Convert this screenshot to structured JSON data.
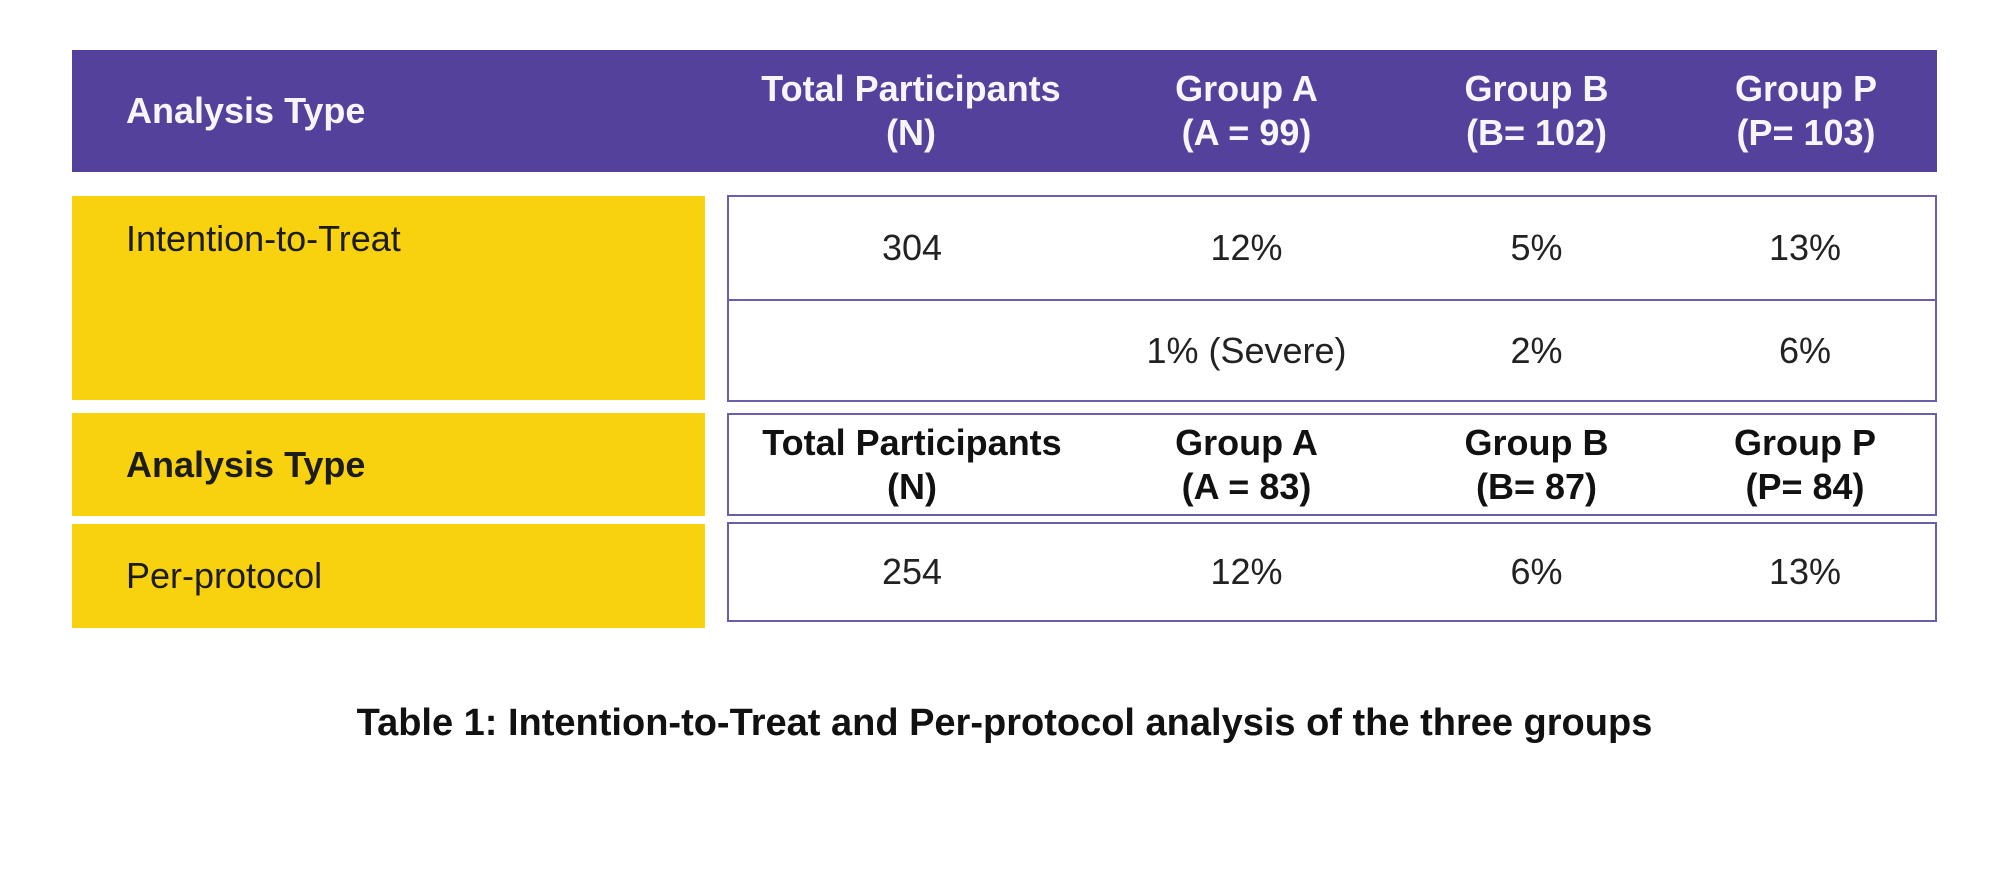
{
  "colors": {
    "header_purple": "#54419B",
    "row_yellow": "#F8D20E",
    "box_border_purple": "#6A5FA8",
    "header_text": "#F7F5FA",
    "body_text": "#222222"
  },
  "primary_header": {
    "analysis_type_label": "Analysis Type",
    "columns": [
      {
        "line1": "Total Participants",
        "line2": "(N)"
      },
      {
        "line1": "Group A",
        "line2": "(A = 99)"
      },
      {
        "line1": "Group B",
        "line2": "(B= 102)"
      },
      {
        "line1": "Group P",
        "line2": "(P= 103)"
      }
    ]
  },
  "intention_to_treat": {
    "row_label": "Intention-to-Treat",
    "row1": {
      "total": "304",
      "group_a": "12%",
      "group_b": "5%",
      "group_p": "13%"
    },
    "row2": {
      "total": "",
      "group_a": "1% (Severe)",
      "group_b": "2%",
      "group_p": "6%"
    }
  },
  "per_protocol": {
    "section_label": "Analysis Type",
    "columns": [
      {
        "line1": "Total Participants",
        "line2": "(N)"
      },
      {
        "line1": "Group A",
        "line2": "(A = 83)"
      },
      {
        "line1": "Group B",
        "line2": "(B= 87)"
      },
      {
        "line1": "Group P",
        "line2": "(P= 84)"
      }
    ],
    "row_label": "Per-protocol",
    "row": {
      "total": "254",
      "group_a": "12%",
      "group_b": "6%",
      "group_p": "13%"
    }
  },
  "caption": "Table 1: Intention-to-Treat and Per-protocol analysis of the three groups"
}
